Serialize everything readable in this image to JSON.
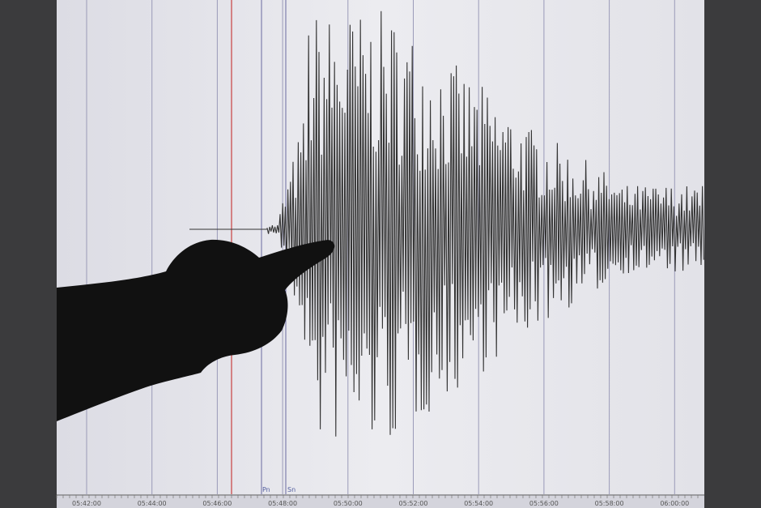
{
  "seismogram": {
    "time_labels": [
      "05:42:00",
      "05:44:00",
      "05:46:00",
      "05:48:00",
      "05:50:00",
      "05:52:00",
      "05:54:00",
      "05:56:00",
      "05:58:00",
      "06:00:00"
    ],
    "phase_markers": [
      {
        "label": "Pn"
      },
      {
        "label": "Sn"
      }
    ],
    "colors": {
      "trace": "#333333",
      "grid": "#9a9ab8",
      "origin_marker": "#c84040",
      "background": "#e8e8ee"
    }
  },
  "foreground": {
    "subject": "hand-silhouette-pointing"
  }
}
